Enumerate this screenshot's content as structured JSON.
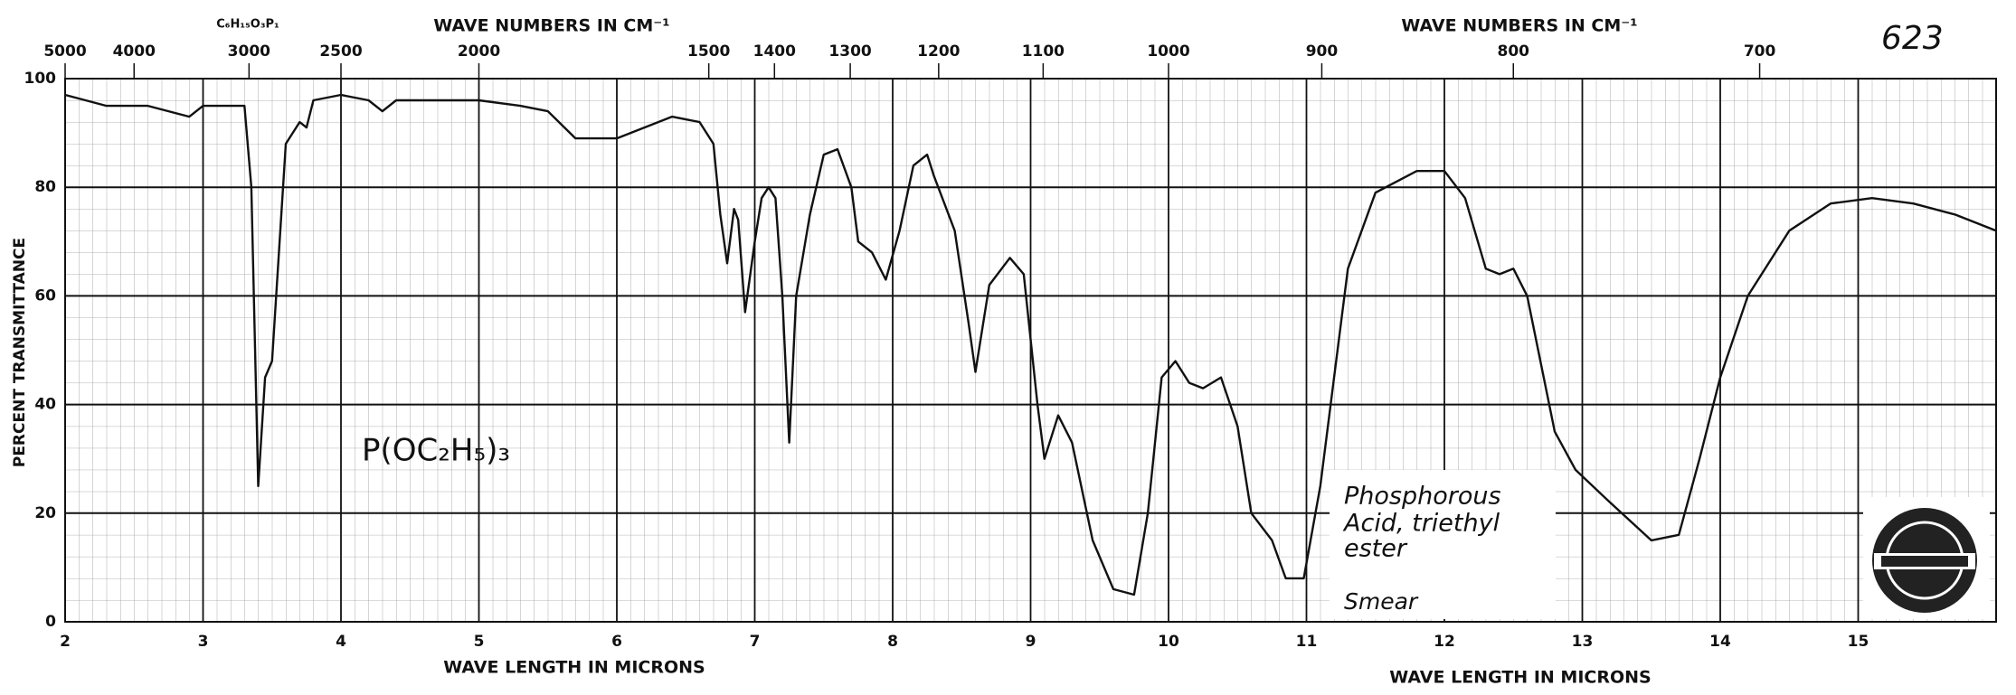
{
  "chart_data": {
    "type": "line",
    "catalog_number": "623",
    "formula": "C₆H₁₅O₃P₁",
    "x2_axis_label": [
      "WAVE NUMBERS IN CM⁻¹",
      "WAVE NUMBERS IN CM⁻¹"
    ],
    "x_axis_label": [
      "WAVE LENGTH IN MICRONS",
      "WAVE LENGTH IN MICRONS"
    ],
    "y_axis_label": "PERCENT TRANSMITTANCE",
    "structure": "P(OC₂H₅)₃",
    "compound_name": [
      "Phosphorous",
      "Acid, triethyl",
      "ester"
    ],
    "sample": "Smear",
    "color": "#111111",
    "grid": true,
    "xlim": [
      2,
      16
    ],
    "ylim": [
      0,
      100
    ],
    "xticks": [
      2,
      3,
      4,
      5,
      6,
      7,
      8,
      9,
      10,
      11,
      12,
      13,
      14,
      15
    ],
    "yticks": [
      0,
      20,
      40,
      60,
      80,
      100
    ],
    "x2ticks": [
      5000,
      4000,
      3000,
      2500,
      2000,
      1500,
      1400,
      1300,
      1200,
      1100,
      1000,
      900,
      800,
      700
    ],
    "x": [
      2.0,
      2.3,
      2.6,
      2.9,
      3.0,
      3.3,
      3.35,
      3.4,
      3.45,
      3.5,
      3.6,
      3.7,
      3.75,
      3.8,
      4.0,
      4.2,
      4.3,
      4.4,
      4.6,
      5.0,
      5.3,
      5.5,
      5.7,
      6.0,
      6.2,
      6.4,
      6.6,
      6.7,
      6.75,
      6.8,
      6.85,
      6.88,
      6.93,
      7.0,
      7.05,
      7.1,
      7.15,
      7.2,
      7.25,
      7.3,
      7.4,
      7.5,
      7.6,
      7.7,
      7.75,
      7.85,
      7.95,
      8.05,
      8.15,
      8.25,
      8.3,
      8.45,
      8.55,
      8.6,
      8.7,
      8.85,
      8.95,
      9.05,
      9.1,
      9.2,
      9.3,
      9.45,
      9.6,
      9.75,
      9.85,
      9.95,
      10.05,
      10.15,
      10.25,
      10.38,
      10.5,
      10.6,
      10.75,
      10.85,
      10.98,
      11.1,
      11.3,
      11.5,
      11.8,
      12.0,
      12.15,
      12.3,
      12.4,
      12.5,
      12.6,
      12.8,
      12.95,
      13.2,
      13.5,
      13.7,
      13.85,
      14.0,
      14.2,
      14.5,
      14.8,
      15.1,
      15.4,
      15.7,
      16.0
    ],
    "values": [
      97,
      95,
      95,
      93,
      95,
      95,
      80,
      25,
      45,
      48,
      88,
      92,
      91,
      96,
      97,
      96,
      94,
      96,
      96,
      96,
      95,
      94,
      89,
      89,
      91,
      93,
      92,
      88,
      75,
      66,
      76,
      74,
      57,
      70,
      78,
      80,
      78,
      60,
      33,
      60,
      75,
      86,
      87,
      80,
      70,
      68,
      63,
      72,
      84,
      86,
      82,
      72,
      55,
      46,
      62,
      67,
      64,
      40,
      30,
      38,
      33,
      15,
      6,
      5,
      20,
      45,
      48,
      44,
      43,
      45,
      36,
      20,
      15,
      8,
      8,
      25,
      65,
      79,
      83,
      83,
      78,
      65,
      64,
      65,
      60,
      35,
      28,
      22,
      15,
      16,
      30,
      45,
      60,
      72,
      77,
      78,
      77,
      75,
      72
    ]
  }
}
